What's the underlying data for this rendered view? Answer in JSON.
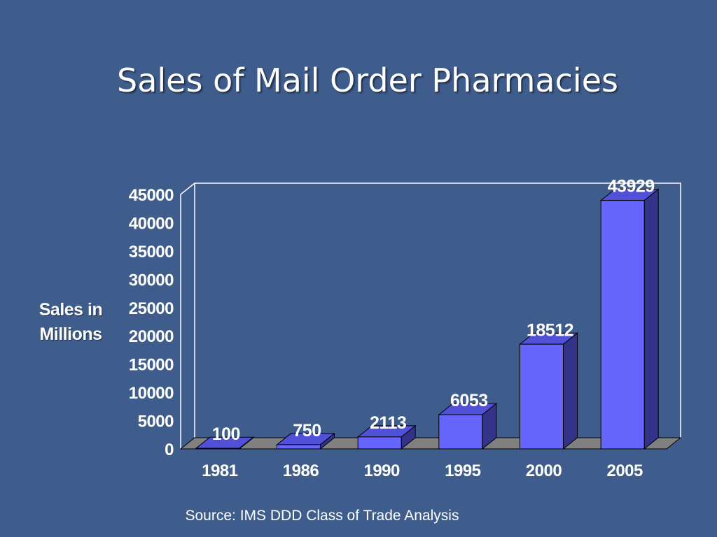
{
  "slide": {
    "title": "Sales of Mail Order Pharmacies",
    "source": "Source: IMS DDD Class of Trade Analysis"
  },
  "chart_data": {
    "type": "bar",
    "title": "Sales of Mail Order Pharmacies",
    "xlabel": "",
    "ylabel": "Sales in Millions",
    "ylabel_lines": [
      "Sales in",
      "Millions"
    ],
    "categories": [
      "1981",
      "1986",
      "1990",
      "1995",
      "2000",
      "2005"
    ],
    "values": [
      100,
      750,
      2113,
      6053,
      18512,
      43929
    ],
    "data_labels": [
      "100",
      "750",
      "2113",
      "6053",
      "18512",
      "43929"
    ],
    "ylim": [
      0,
      45000
    ],
    "yticks": [
      0,
      5000,
      10000,
      15000,
      20000,
      25000,
      30000,
      35000,
      40000,
      45000
    ],
    "ytick_labels": [
      "0",
      "5000",
      "10000",
      "15000",
      "20000",
      "25000",
      "30000",
      "35000",
      "40000",
      "45000"
    ],
    "style": "3d-bar",
    "grid": false,
    "legend": "none",
    "colors": {
      "background": "#3f5d8c",
      "bar_front": "#6666ff",
      "bar_top": "#5050d8",
      "bar_side": "#33338a",
      "floor": "#808080",
      "outline": "#000000",
      "frame": "#ffffff"
    }
  }
}
